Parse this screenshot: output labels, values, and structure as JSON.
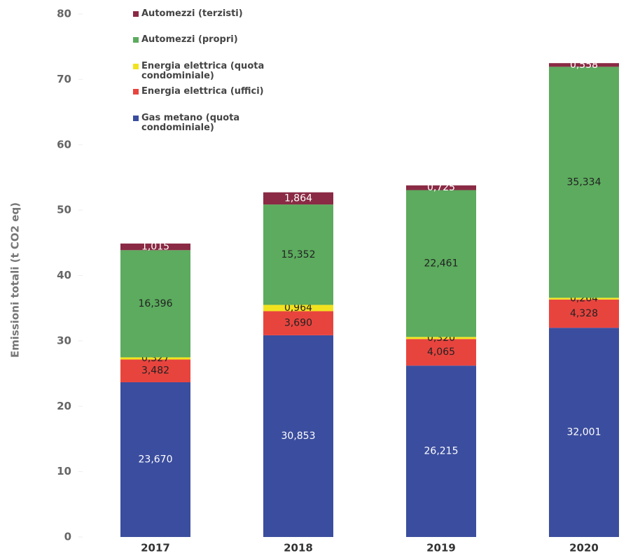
{
  "chart_data": {
    "type": "stacked_bar",
    "y_axis_label": "Emissioni totali (t CO2 eq)",
    "categories": [
      "2017",
      "2018",
      "2019",
      "2020"
    ],
    "ylim": [
      0,
      80
    ],
    "yticks": [
      0,
      10,
      20,
      30,
      40,
      50,
      60,
      70,
      80
    ],
    "series": [
      {
        "name": "Gas metano (quota condominiale)",
        "color": "#3b4d9e",
        "label_color": "#ffffff",
        "values": [
          23.67,
          30.853,
          26.215,
          32.001
        ],
        "value_labels": [
          "23,670",
          "30,853",
          "26,215",
          "32,001"
        ]
      },
      {
        "name": "Energia elettrica (uffici)",
        "color": "#e8443e",
        "label_color": "#222222",
        "values": [
          3.482,
          3.69,
          4.065,
          4.328
        ],
        "value_labels": [
          "3,482",
          "3,690",
          "4,065",
          "4,328"
        ]
      },
      {
        "name": "Energia elettrica (quota condominiale)",
        "color": "#f2e21e",
        "label_color": "#222222",
        "values": [
          0.327,
          0.964,
          0.32,
          0.264
        ],
        "value_labels": [
          "0,327",
          "0,964",
          "0,320",
          "0,264"
        ]
      },
      {
        "name": "Automezzi (propri)",
        "color": "#5cab5e",
        "label_color": "#222222",
        "values": [
          16.396,
          15.352,
          22.461,
          35.334
        ],
        "value_labels": [
          "16,396",
          "15,352",
          "22,461",
          "35,334"
        ]
      },
      {
        "name": "Automezzi (terzisti)",
        "color": "#8a2a44",
        "label_color": "#ffffff",
        "values": [
          1.015,
          1.864,
          0.725,
          0.558
        ],
        "value_labels": [
          "1,015",
          "1,864",
          "0,725",
          "0,558"
        ]
      }
    ]
  }
}
